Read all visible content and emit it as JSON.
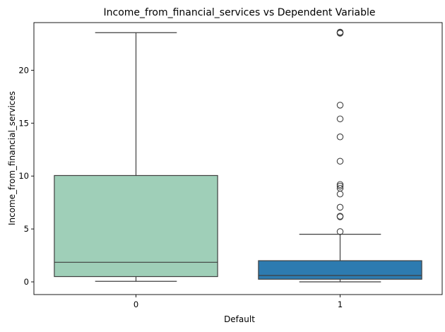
{
  "chart_data": {
    "type": "box",
    "title": "Income_from_financial_services vs Dependent Variable",
    "xlabel": "Default",
    "ylabel": "Income_from_financial_services",
    "categories": [
      "0",
      "1"
    ],
    "ylim": [
      -1.2,
      24.5
    ],
    "yticks": [
      0,
      5,
      10,
      15,
      20
    ],
    "grid": false,
    "colors": {
      "box_0": "#9fcfb8",
      "box_1": "#2d7bb0",
      "lines": "#3f3f3f"
    },
    "boxes": [
      {
        "category": "0",
        "whisker_low": 0.05,
        "q1": 0.5,
        "median": 1.85,
        "q3": 10.05,
        "whisker_high": 23.55,
        "outliers": []
      },
      {
        "category": "1",
        "whisker_low": 0.0,
        "q1": 0.25,
        "median": 0.6,
        "q3": 2.0,
        "whisker_high": 4.5,
        "outliers": [
          4.75,
          6.15,
          6.2,
          7.05,
          8.3,
          8.85,
          9.05,
          9.2,
          11.4,
          13.7,
          15.4,
          16.7,
          23.5,
          23.55,
          23.6
        ]
      }
    ]
  }
}
